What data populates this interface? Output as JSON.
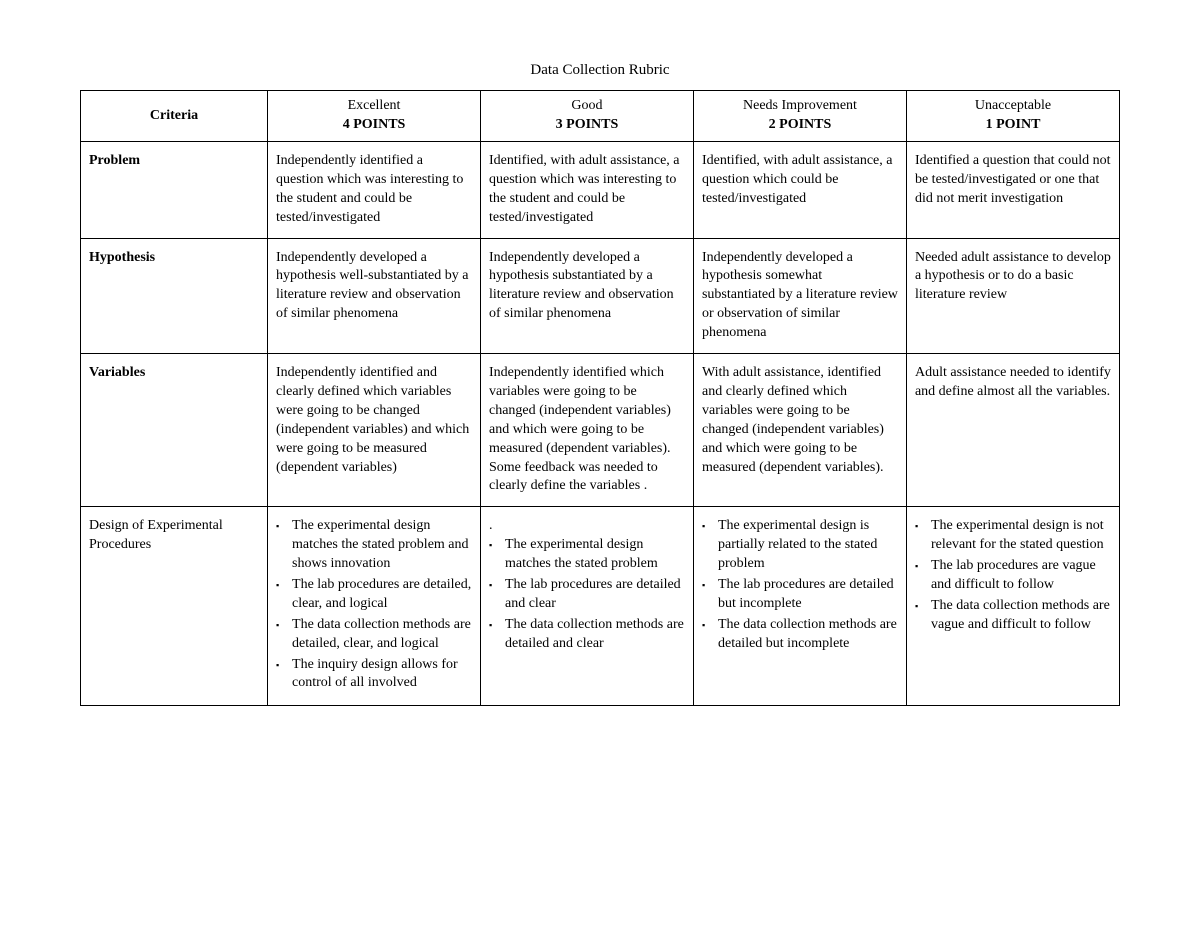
{
  "title": "Data Collection Rubric",
  "columns": {
    "criteria": "Criteria",
    "levels": [
      {
        "label": "Excellent",
        "points": "4 POINTS"
      },
      {
        "label": "Good",
        "points": "3 POINTS"
      },
      {
        "label": "Needs Improvement",
        "points": "2 POINTS"
      },
      {
        "label": "Unacceptable",
        "points": "1 POINT"
      }
    ]
  },
  "rows": [
    {
      "criteria": "Problem",
      "criteria_bold": true,
      "cells": [
        {
          "type": "text",
          "text": "Independently identified a question which was interesting to the student and could be tested/investigated"
        },
        {
          "type": "text",
          "text": "Identified, with adult assistance, a question which was interesting to the student and could be tested/investigated"
        },
        {
          "type": "text",
          "text": "Identified, with adult assistance, a question which could be tested/investigated"
        },
        {
          "type": "text",
          "text": "Identified a question that could not be tested/investigated or one that did not merit investigation"
        }
      ]
    },
    {
      "criteria": "Hypothesis",
      "criteria_bold": true,
      "cells": [
        {
          "type": "text",
          "text": "Independently developed a hypothesis well-substantiated by a literature review and observation of similar phenomena"
        },
        {
          "type": "text",
          "text": "Independently developed a hypothesis substantiated by a literature review and observation of similar phenomena"
        },
        {
          "type": "text",
          "text": "Independently developed a hypothesis somewhat substantiated by a literature review or observation of similar phenomena"
        },
        {
          "type": "text",
          "text": "Needed adult assistance to develop a hypothesis or to do a basic literature review"
        }
      ]
    },
    {
      "criteria": "Variables",
      "criteria_bold": true,
      "cells": [
        {
          "type": "text",
          "text": "Independently identified and clearly defined which variables were going to be changed (independent variables) and which were going to be measured (dependent variables)"
        },
        {
          "type": "text",
          "text": "Independently identified which variables were going to be changed (independent variables) and which were going to be measured (dependent variables). Some feedback was needed to clearly define the variables ."
        },
        {
          "type": "text",
          "text": "With adult assistance, identified and clearly defined which variables were going to be changed (independent variables) and which were going to be measured (dependent variables)."
        },
        {
          "type": "text",
          "text": "Adult assistance needed to identify and define almost all the variables."
        }
      ]
    },
    {
      "criteria": "Design of Experimental Procedures",
      "criteria_bold": false,
      "cells": [
        {
          "type": "list",
          "items": [
            "The experimental design matches the stated problem and shows innovation",
            "The lab procedures are detailed, clear, and logical",
            "The data collection methods are detailed, clear, and logical",
            "The inquiry design allows for control of all involved"
          ]
        },
        {
          "type": "list",
          "prelude": ".",
          "items": [
            "The experimental design matches the stated problem",
            "The lab procedures are detailed and clear",
            "The data collection methods are detailed and clear"
          ]
        },
        {
          "type": "list",
          "items": [
            "The experimental design is partially related to the stated problem",
            "The lab procedures are detailed but incomplete",
            "The data collection methods are detailed but incomplete"
          ]
        },
        {
          "type": "list",
          "items": [
            "The experimental design is not relevant for the stated question",
            "The lab procedures are vague and difficult to follow",
            "The data collection methods are vague and difficult to follow"
          ]
        }
      ]
    }
  ],
  "style": {
    "font_family": "Georgia, 'Times New Roman', serif",
    "body_fontsize": 14,
    "title_fontsize": 15,
    "border_color": "#000000",
    "background_color": "#ffffff",
    "text_color": "#000000",
    "border_width": 1.5
  }
}
